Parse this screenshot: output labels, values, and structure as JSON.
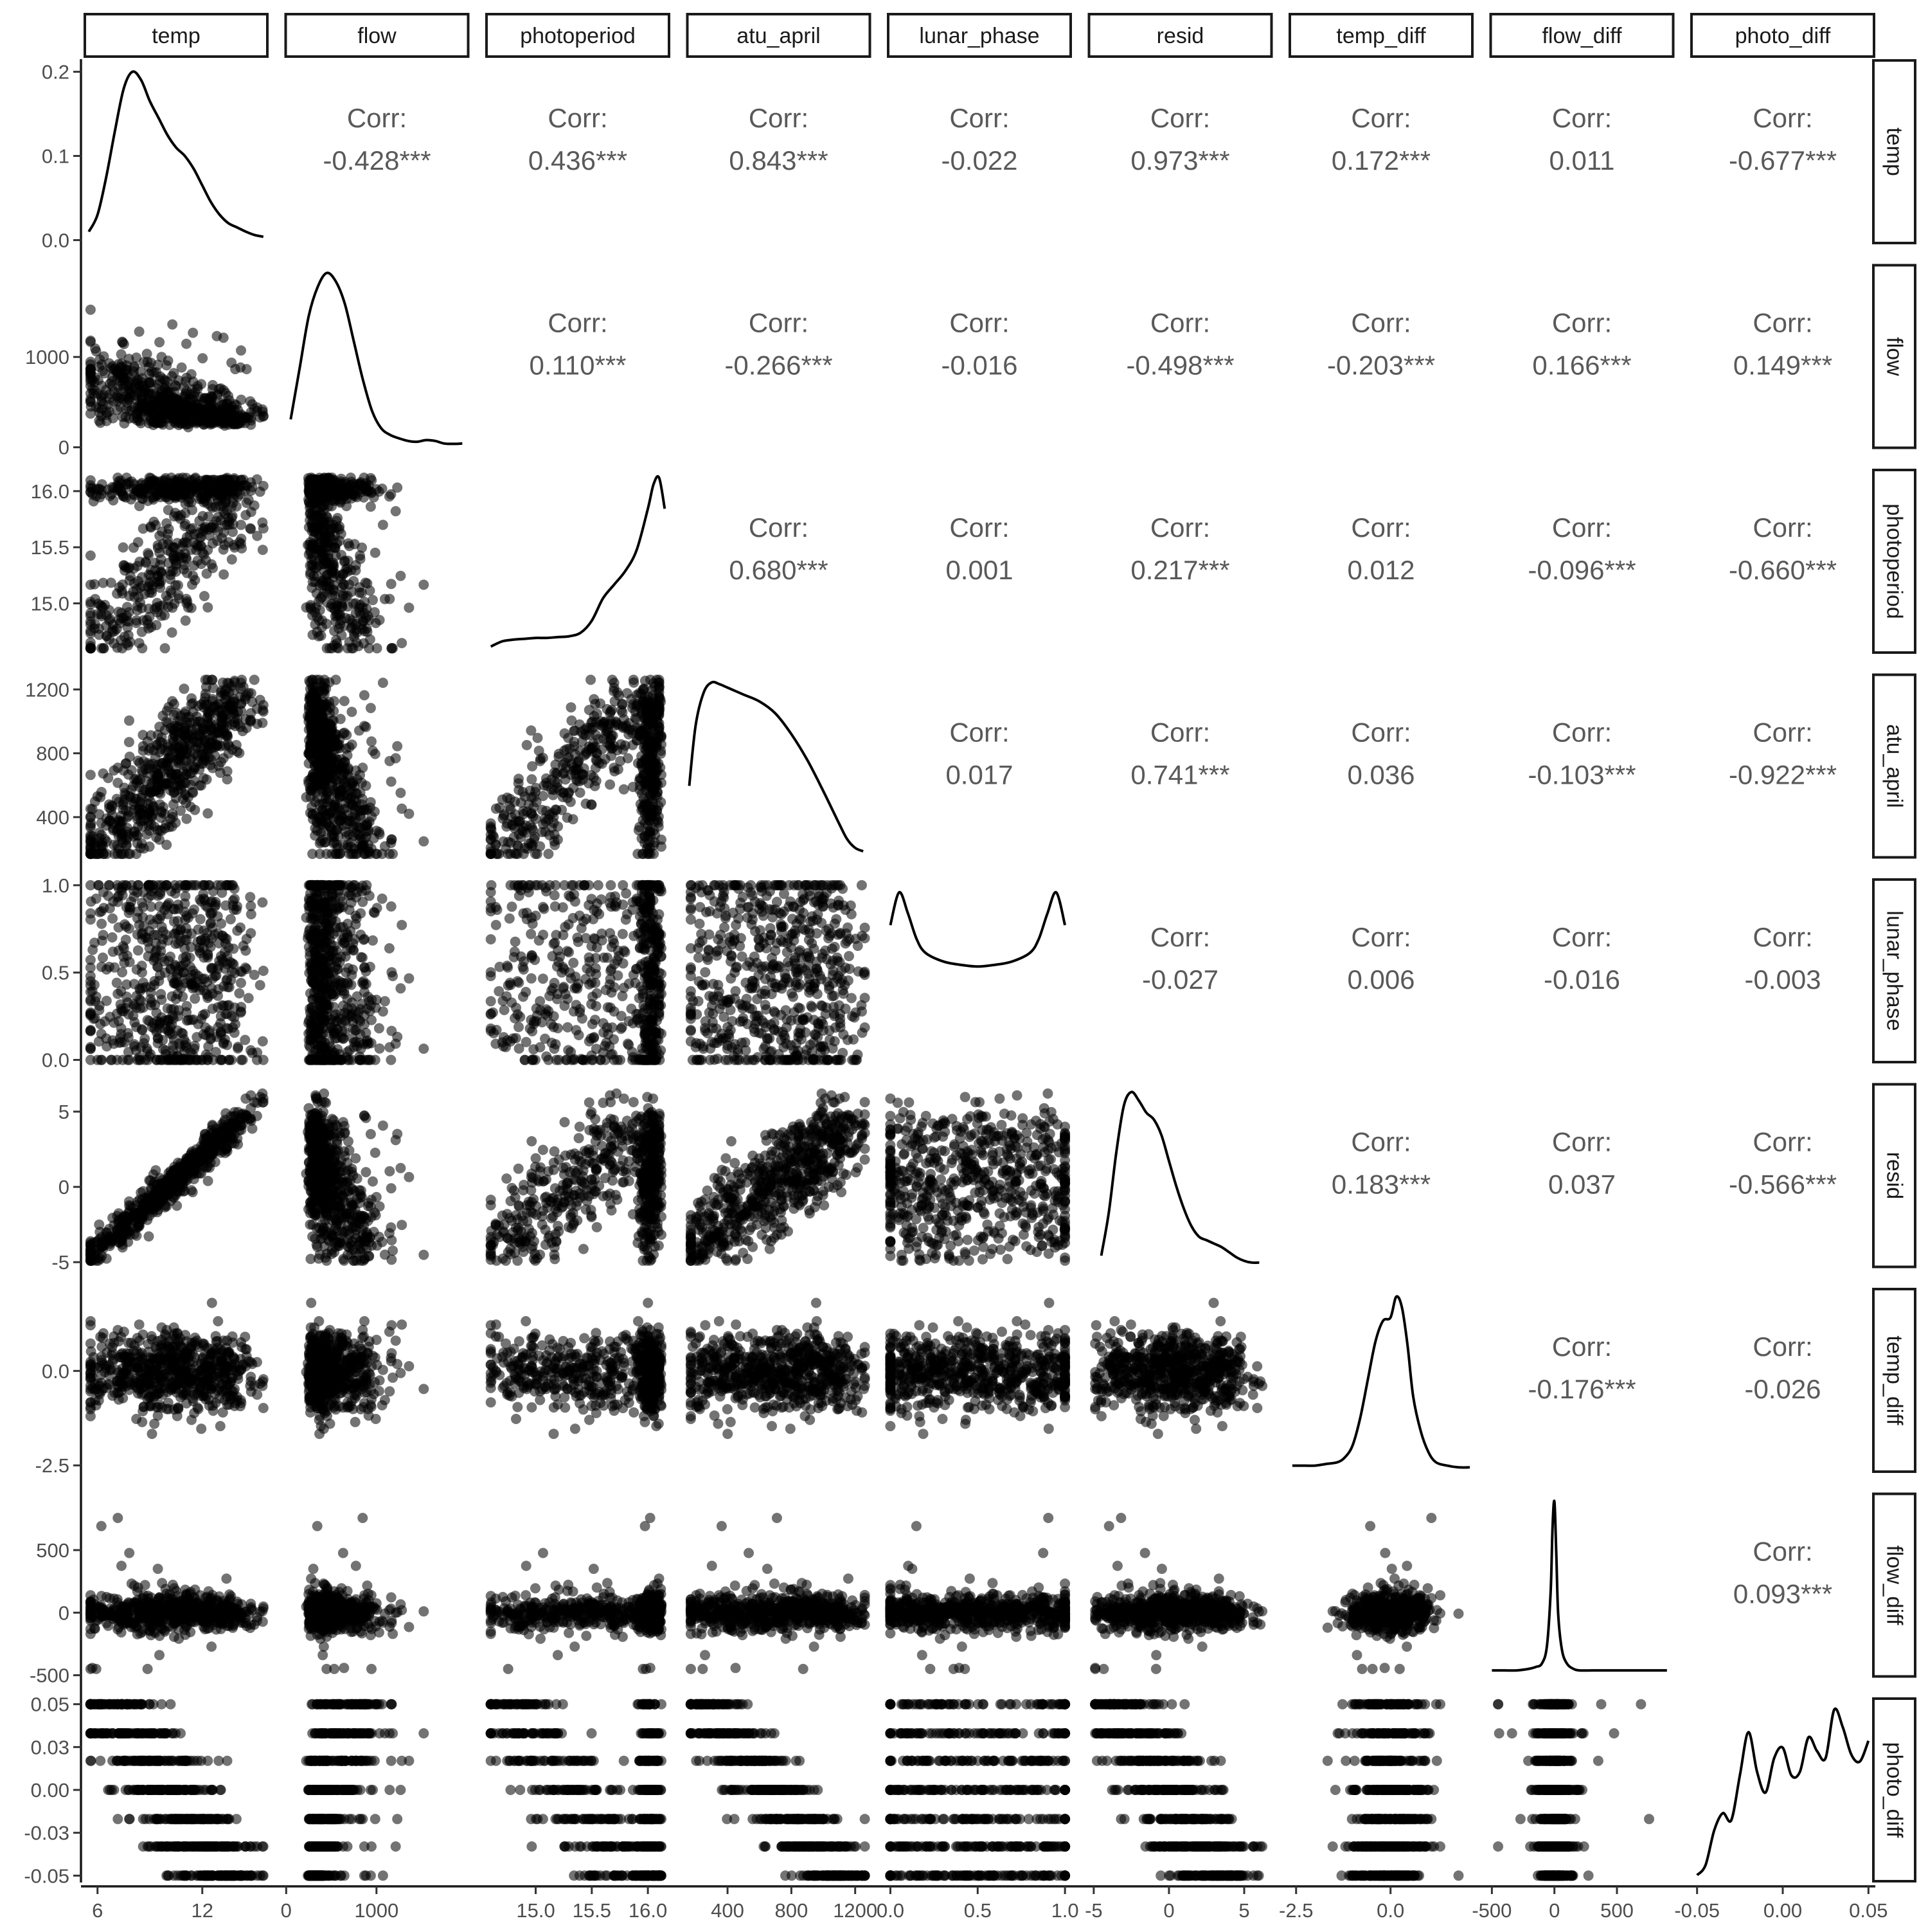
{
  "chart_data": {
    "type": "scatter",
    "subtype": "pairs-matrix (ggpairs)",
    "variables": [
      "temp",
      "flow",
      "photoperiod",
      "atu_april",
      "lunar_phase",
      "resid",
      "temp_diff",
      "flow_diff",
      "photo_diff"
    ],
    "upper_triangle": "correlation coefficients with significance stars",
    "diagonal": "density curves",
    "lower_triangle": "scatter plots",
    "corr_title": "Corr:",
    "axes": {
      "temp": {
        "range": [
          5.2,
          15.8
        ],
        "ticks": [
          "6",
          "12"
        ],
        "tick_values": [
          6,
          12
        ]
      },
      "flow": {
        "range": [
          -20,
          2030
        ],
        "ticks": [
          "0",
          "1000"
        ],
        "tick_values": [
          0,
          1000
        ]
      },
      "photoperiod": {
        "range": [
          14.55,
          16.2
        ],
        "ticks": [
          "15.0",
          "15.5",
          "16.0"
        ],
        "tick_values": [
          15.0,
          15.5,
          16.0
        ]
      },
      "atu_april": {
        "range": [
          140,
          1300
        ],
        "ticks": [
          "400",
          "800",
          "1200"
        ],
        "tick_values": [
          400,
          800,
          1200
        ]
      },
      "lunar_phase": {
        "range": [
          -0.02,
          1.04
        ],
        "ticks": [
          "0.0",
          "0.5",
          "1.0"
        ],
        "tick_values": [
          0.0,
          0.5,
          1.0
        ]
      },
      "resid": {
        "range": [
          -5.4,
          6.9
        ],
        "ticks": [
          "-5",
          "0",
          "5"
        ],
        "tick_values": [
          -5,
          0,
          5
        ]
      },
      "temp_diff": {
        "range": [
          -2.7,
          2.2
        ],
        "ticks": [
          "-2.5",
          "0.0"
        ],
        "tick_values": [
          -2.5,
          0.0
        ]
      },
      "flow_diff": {
        "range": [
          -520,
          960
        ],
        "ticks": [
          "-500",
          "0",
          "500"
        ],
        "tick_values": [
          -500,
          0,
          500
        ]
      },
      "photo_diff": {
        "range": [
          -0.054,
          0.054
        ],
        "ticks": [
          "-0.05",
          "0.00",
          "0.05"
        ],
        "tick_values": [
          -0.05,
          0.0,
          0.05
        ],
        "y_ticks": [
          "-0.05",
          "-0.03",
          "0.00",
          "0.03",
          "0.05"
        ],
        "y_tick_values": [
          -0.05,
          -0.025,
          0.0,
          0.025,
          0.05
        ]
      }
    },
    "density_y_axis": {
      "range": [
        -0.005,
        0.215
      ],
      "ticks": [
        "0.0",
        "0.1",
        "0.2"
      ],
      "tick_values": [
        0.0,
        0.1,
        0.2
      ]
    },
    "correlations": [
      {
        "row": "temp",
        "col": "flow",
        "value": "-0.428***"
      },
      {
        "row": "temp",
        "col": "photoperiod",
        "value": "0.436***"
      },
      {
        "row": "temp",
        "col": "atu_april",
        "value": "0.843***"
      },
      {
        "row": "temp",
        "col": "lunar_phase",
        "value": "-0.022"
      },
      {
        "row": "temp",
        "col": "resid",
        "value": "0.973***"
      },
      {
        "row": "temp",
        "col": "temp_diff",
        "value": "0.172***"
      },
      {
        "row": "temp",
        "col": "flow_diff",
        "value": "0.011"
      },
      {
        "row": "temp",
        "col": "photo_diff",
        "value": "-0.677***"
      },
      {
        "row": "flow",
        "col": "photoperiod",
        "value": "0.110***"
      },
      {
        "row": "flow",
        "col": "atu_april",
        "value": "-0.266***"
      },
      {
        "row": "flow",
        "col": "lunar_phase",
        "value": "-0.016"
      },
      {
        "row": "flow",
        "col": "resid",
        "value": "-0.498***"
      },
      {
        "row": "flow",
        "col": "temp_diff",
        "value": "-0.203***"
      },
      {
        "row": "flow",
        "col": "flow_diff",
        "value": "0.166***"
      },
      {
        "row": "flow",
        "col": "photo_diff",
        "value": "0.149***"
      },
      {
        "row": "photoperiod",
        "col": "atu_april",
        "value": "0.680***"
      },
      {
        "row": "photoperiod",
        "col": "lunar_phase",
        "value": "0.001"
      },
      {
        "row": "photoperiod",
        "col": "resid",
        "value": "0.217***"
      },
      {
        "row": "photoperiod",
        "col": "temp_diff",
        "value": "0.012"
      },
      {
        "row": "photoperiod",
        "col": "flow_diff",
        "value": "-0.096***"
      },
      {
        "row": "photoperiod",
        "col": "photo_diff",
        "value": "-0.660***"
      },
      {
        "row": "atu_april",
        "col": "lunar_phase",
        "value": "0.017"
      },
      {
        "row": "atu_april",
        "col": "resid",
        "value": "0.741***"
      },
      {
        "row": "atu_april",
        "col": "temp_diff",
        "value": "0.036"
      },
      {
        "row": "atu_april",
        "col": "flow_diff",
        "value": "-0.103***"
      },
      {
        "row": "atu_april",
        "col": "photo_diff",
        "value": "-0.922***"
      },
      {
        "row": "lunar_phase",
        "col": "resid",
        "value": "-0.027"
      },
      {
        "row": "lunar_phase",
        "col": "temp_diff",
        "value": "0.006"
      },
      {
        "row": "lunar_phase",
        "col": "flow_diff",
        "value": "-0.016"
      },
      {
        "row": "lunar_phase",
        "col": "photo_diff",
        "value": "-0.003"
      },
      {
        "row": "resid",
        "col": "temp_diff",
        "value": "0.183***"
      },
      {
        "row": "resid",
        "col": "flow_diff",
        "value": "0.037"
      },
      {
        "row": "resid",
        "col": "photo_diff",
        "value": "-0.566***"
      },
      {
        "row": "temp_diff",
        "col": "flow_diff",
        "value": "-0.176***"
      },
      {
        "row": "temp_diff",
        "col": "photo_diff",
        "value": "-0.026"
      },
      {
        "row": "flow_diff",
        "col": "photo_diff",
        "value": "0.093***"
      }
    ],
    "densities": {
      "temp": {
        "x": [
          5.5,
          6,
          6.5,
          7,
          7.5,
          8,
          8.5,
          9,
          9.5,
          10,
          10.5,
          11,
          11.5,
          12,
          12.5,
          13,
          13.5,
          14,
          14.5,
          15,
          15.5
        ],
        "y": [
          0.01,
          0.03,
          0.075,
          0.13,
          0.18,
          0.2,
          0.19,
          0.165,
          0.145,
          0.125,
          0.11,
          0.1,
          0.085,
          0.065,
          0.045,
          0.03,
          0.02,
          0.015,
          0.01,
          0.006,
          0.004
        ]
      },
      "flow": {
        "x": [
          50,
          150,
          250,
          350,
          450,
          550,
          650,
          750,
          850,
          950,
          1050,
          1150,
          1250,
          1350,
          1450,
          1550,
          1650,
          1750,
          1850,
          1950
        ],
        "y": [
          0.15,
          0.45,
          0.75,
          0.92,
          1.0,
          0.95,
          0.82,
          0.6,
          0.38,
          0.2,
          0.1,
          0.06,
          0.04,
          0.025,
          0.02,
          0.03,
          0.025,
          0.01,
          0.008,
          0.01
        ]
      },
      "photoperiod": {
        "x": [
          14.6,
          14.7,
          14.8,
          14.9,
          15.0,
          15.1,
          15.2,
          15.3,
          15.4,
          15.5,
          15.6,
          15.7,
          15.8,
          15.9,
          16.0,
          16.05,
          16.1,
          16.15
        ],
        "y": [
          0.02,
          0.05,
          0.06,
          0.065,
          0.07,
          0.07,
          0.075,
          0.08,
          0.1,
          0.17,
          0.3,
          0.38,
          0.46,
          0.58,
          0.82,
          0.96,
          1.0,
          0.82
        ]
      },
      "atu_april": {
        "x": [
          160,
          200,
          250,
          300,
          350,
          400,
          500,
          600,
          700,
          800,
          900,
          1000,
          1100,
          1150,
          1200,
          1250
        ],
        "y": [
          0.4,
          0.75,
          0.94,
          1.0,
          0.99,
          0.97,
          0.93,
          0.89,
          0.82,
          0.7,
          0.55,
          0.37,
          0.18,
          0.09,
          0.04,
          0.02
        ]
      },
      "lunar_phase": {
        "x": [
          0.0,
          0.05,
          0.1,
          0.15,
          0.2,
          0.3,
          0.4,
          0.5,
          0.6,
          0.7,
          0.8,
          0.85,
          0.9,
          0.95,
          1.0
        ],
        "y": [
          0.78,
          0.97,
          0.85,
          0.7,
          0.62,
          0.57,
          0.55,
          0.54,
          0.55,
          0.57,
          0.62,
          0.7,
          0.85,
          0.97,
          0.78
        ]
      },
      "resid": {
        "x": [
          -4.5,
          -4,
          -3.5,
          -3,
          -2.5,
          -2,
          -1.5,
          -1,
          -0.5,
          0,
          0.5,
          1,
          1.5,
          2,
          2.5,
          3,
          3.5,
          4,
          4.5,
          5,
          5.5,
          6
        ],
        "y": [
          0.05,
          0.3,
          0.65,
          0.92,
          1.0,
          0.95,
          0.88,
          0.84,
          0.75,
          0.6,
          0.45,
          0.32,
          0.22,
          0.16,
          0.14,
          0.12,
          0.1,
          0.07,
          0.04,
          0.02,
          0.01,
          0.01
        ]
      },
      "temp_diff": {
        "x": [
          -2.6,
          -2.3,
          -2.0,
          -1.7,
          -1.4,
          -1.2,
          -1.0,
          -0.8,
          -0.6,
          -0.4,
          -0.2,
          0.0,
          0.15,
          0.3,
          0.45,
          0.6,
          0.8,
          1.0,
          1.2,
          1.5,
          1.8,
          2.1
        ],
        "y": [
          0.02,
          0.02,
          0.02,
          0.03,
          0.04,
          0.07,
          0.14,
          0.3,
          0.52,
          0.74,
          0.86,
          0.88,
          1.0,
          0.94,
          0.72,
          0.42,
          0.22,
          0.1,
          0.04,
          0.02,
          0.01,
          0.01
        ]
      },
      "flow_diff": {
        "x": [
          -500,
          -400,
          -300,
          -200,
          -150,
          -100,
          -60,
          -30,
          -15,
          0,
          15,
          30,
          60,
          100,
          150,
          200,
          300,
          400,
          500,
          600,
          700,
          800,
          900
        ],
        "y": [
          0.02,
          0.02,
          0.02,
          0.03,
          0.04,
          0.06,
          0.16,
          0.48,
          0.85,
          1.0,
          0.7,
          0.35,
          0.14,
          0.06,
          0.03,
          0.02,
          0.02,
          0.02,
          0.02,
          0.02,
          0.02,
          0.02,
          0.02
        ]
      },
      "photo_diff": {
        "x": [
          -0.05,
          -0.045,
          -0.04,
          -0.035,
          -0.03,
          -0.025,
          -0.02,
          -0.015,
          -0.01,
          -0.005,
          0.0,
          0.005,
          0.01,
          0.015,
          0.02,
          0.025,
          0.03,
          0.035,
          0.04,
          0.045,
          0.05
        ],
        "y": [
          0.02,
          0.08,
          0.28,
          0.38,
          0.34,
          0.6,
          0.85,
          0.62,
          0.5,
          0.7,
          0.76,
          0.6,
          0.62,
          0.82,
          0.74,
          0.7,
          0.98,
          0.88,
          0.72,
          0.68,
          0.8
        ]
      }
    }
  }
}
